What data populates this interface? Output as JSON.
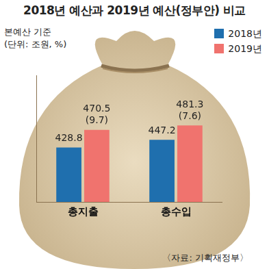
{
  "chart_data": {
    "type": "bar",
    "title": "2018년 예산과 2019년 예산(정부안) 비교",
    "subtitle": [
      "본예산 기준",
      "(단위: 조원, %)"
    ],
    "source": "〈자료: 기획재정부〉",
    "categories": [
      "총지출",
      "총수입"
    ],
    "series": [
      {
        "name": "2018년",
        "color": "#1f6fae",
        "values": [
          428.8,
          447.2
        ]
      },
      {
        "name": "2019년",
        "color": "#f0736e",
        "values": [
          470.5,
          481.3
        ],
        "growth_labels": [
          "(9.7)",
          "(7.6)"
        ]
      }
    ],
    "ylim": [
      300,
      600
    ],
    "grid": false,
    "tick_labels": "x",
    "data_labels": true,
    "legend": "top-right"
  }
}
